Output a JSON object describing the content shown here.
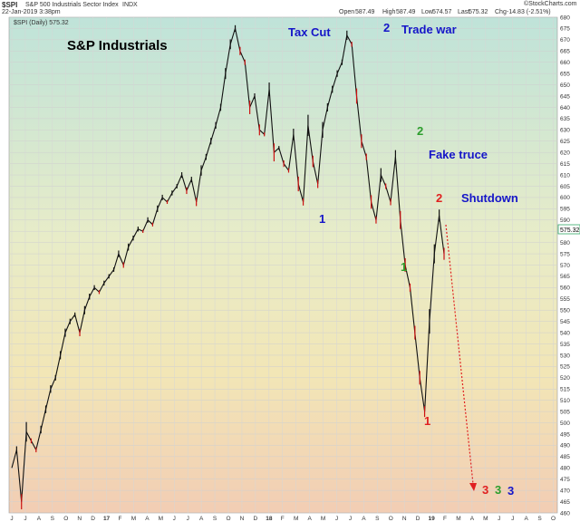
{
  "header": {
    "ticker": "$SPI",
    "name": "S&P 500 Industrials Sector Index",
    "exchange": "INDX",
    "datetime": "22-Jan-2019 3:38pm",
    "open_label": "Open",
    "open": "587.49",
    "high_label": "High",
    "high": "587.49",
    "low_label": "Low",
    "low": "574.57",
    "last_label": "Last",
    "last": "575.32",
    "chg_label": "Chg",
    "chg": "-14.83 (-2.51%)",
    "brand": "©StockCharts.com"
  },
  "chart_data": {
    "type": "line",
    "title": "S&P Industrials",
    "legend": "$SPI (Daily) 575.32",
    "last_value_label": "575.32",
    "ylim": [
      460,
      680
    ],
    "ytick_step": 5,
    "grid": true,
    "x_tick_labels": [
      "J",
      "J",
      "A",
      "S",
      "O",
      "N",
      "D",
      "17",
      "F",
      "M",
      "A",
      "M",
      "J",
      "J",
      "A",
      "S",
      "O",
      "N",
      "D",
      "18",
      "F",
      "M",
      "A",
      "M",
      "J",
      "J",
      "A",
      "S",
      "O",
      "N",
      "D",
      "19",
      "F",
      "M",
      "A",
      "M",
      "J",
      "J",
      "A",
      "S",
      "O"
    ],
    "series": [
      {
        "values": [
          480,
          488,
          465,
          496,
          492,
          488,
          497,
          506,
          515,
          520,
          530,
          540,
          545,
          548,
          540,
          550,
          556,
          560,
          558,
          562,
          565,
          568,
          575,
          570,
          578,
          582,
          586,
          585,
          590,
          588,
          595,
          600,
          598,
          602,
          605,
          610,
          603,
          608,
          598,
          612,
          618,
          625,
          632,
          640,
          655,
          668,
          675,
          665,
          660,
          640,
          645,
          630,
          628,
          648,
          620,
          622,
          615,
          612,
          628,
          606,
          598,
          632,
          616,
          606,
          630,
          640,
          648,
          655,
          660,
          672,
          668,
          645,
          625,
          618,
          598,
          590,
          610,
          605,
          598,
          618,
          590,
          570,
          560,
          540,
          520,
          505,
          545,
          575,
          592,
          575
        ]
      }
    ],
    "annotations": [
      {
        "text": "Tax Cut",
        "color": "#1515c8"
      },
      {
        "text": "2",
        "color": "#1515c8"
      },
      {
        "text": "Trade war",
        "color": "#1515c8"
      },
      {
        "text": "1",
        "color": "#1515c8"
      },
      {
        "text": "2",
        "color": "#2c9e2c"
      },
      {
        "text": "Fake truce",
        "color": "#1515c8"
      },
      {
        "text": "2",
        "color": "#e02020"
      },
      {
        "text": "Shutdown",
        "color": "#1515c8"
      },
      {
        "text": "1",
        "color": "#2c9e2c"
      },
      {
        "text": "1",
        "color": "#e02020"
      },
      {
        "text": "3",
        "color": "#e02020"
      },
      {
        "text": "3",
        "color": "#2c9e2c"
      },
      {
        "text": "3",
        "color": "#1515c8"
      }
    ],
    "projection_arrow_color": "#e02020"
  }
}
